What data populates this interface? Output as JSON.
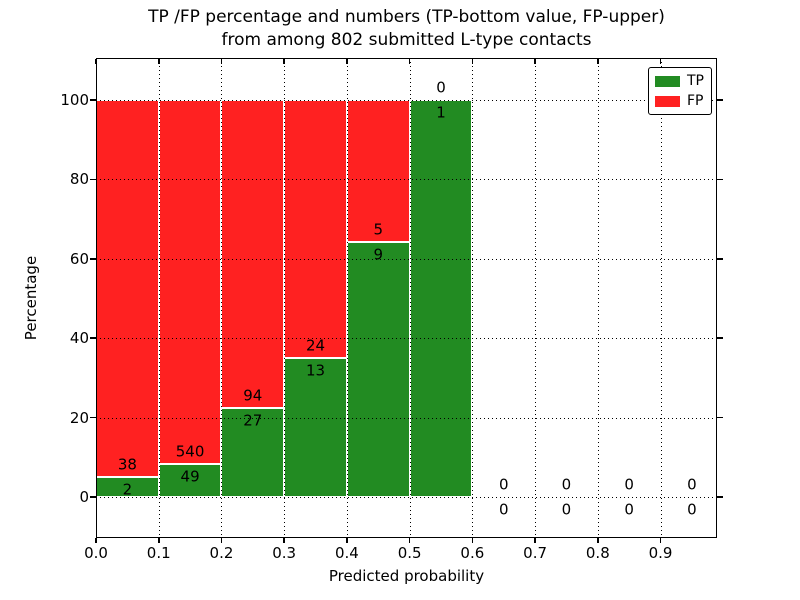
{
  "figure": {
    "title_line1": "TP /FP percentage and numbers (TP-bottom value, FP-upper)",
    "title_line2": "from among 802 submitted L-type contacts"
  },
  "axes": {
    "xlabel": "Predicted probability",
    "ylabel": "Percentage",
    "x_tick_labels": [
      "0.0",
      "0.1",
      "0.2",
      "0.3",
      "0.4",
      "0.5",
      "0.6",
      "0.7",
      "0.8",
      "0.9"
    ],
    "y_tick_labels": [
      "0",
      "20",
      "40",
      "60",
      "80",
      "100"
    ]
  },
  "legend": {
    "entries": [
      {
        "label": "TP",
        "color": "#228b22"
      },
      {
        "label": "FP",
        "color": "#ff2121"
      }
    ]
  },
  "chart_data": {
    "type": "bar",
    "stacked": true,
    "normalized_to_percent": true,
    "title": "TP /FP percentage and numbers (TP-bottom value, FP-upper) from among 802 submitted L-type contacts",
    "xlabel": "Predicted probability",
    "ylabel": "Percentage",
    "x_bin_starts": [
      0.0,
      0.1,
      0.2,
      0.3,
      0.4,
      0.5,
      0.6,
      0.7,
      0.8,
      0.9
    ],
    "bin_width": 0.1,
    "x_tick_values": [
      0.0,
      0.1,
      0.2,
      0.3,
      0.4,
      0.5,
      0.6,
      0.7,
      0.8,
      0.9
    ],
    "y_tick_values": [
      0,
      20,
      40,
      60,
      80,
      100
    ],
    "xlim": [
      0.0,
      0.99
    ],
    "ylim_displayed": [
      0,
      100
    ],
    "series": [
      {
        "name": "TP",
        "color": "#228b22",
        "position": "bottom",
        "counts": [
          2,
          49,
          27,
          13,
          9,
          1,
          0,
          0,
          0,
          0
        ]
      },
      {
        "name": "FP",
        "color": "#ff2121",
        "position": "top",
        "counts": [
          38,
          540,
          94,
          24,
          5,
          0,
          0,
          0,
          0,
          0
        ]
      }
    ],
    "tp_percent_per_bin": [
      5.0,
      8.32,
      22.31,
      35.14,
      64.29,
      100.0,
      0,
      0,
      0,
      0
    ],
    "total_contacts": 802,
    "grid": "dotted, both axes, drawn over bars",
    "bar_edge_color": "#ffffff",
    "legend_position": "upper right",
    "annotation_rule": "FP count printed just above TP/FP boundary, TP count just below it"
  }
}
